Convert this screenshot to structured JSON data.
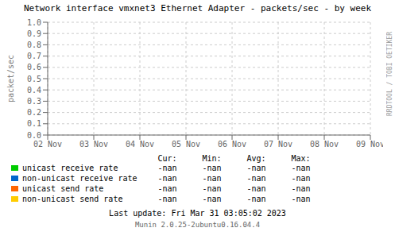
{
  "chart_data": {
    "type": "line",
    "title": "Network interface vmxnet3 Ethernet Adapter - packets/sec - by week",
    "y_label": "packet/sec",
    "categories": [
      "02 Nov",
      "03 Nov",
      "04 Nov",
      "05 Nov",
      "06 Nov",
      "07 Nov",
      "08 Nov",
      "09 Nov"
    ],
    "series": [
      {
        "name": "unicast receive rate",
        "color": "#00cc00",
        "values": [
          null,
          null,
          null,
          null,
          null,
          null,
          null,
          null
        ]
      },
      {
        "name": "non-unicast receive rate",
        "color": "#0066cc",
        "values": [
          null,
          null,
          null,
          null,
          null,
          null,
          null,
          null
        ]
      },
      {
        "name": "unicast send rate",
        "color": "#ff6600",
        "values": [
          null,
          null,
          null,
          null,
          null,
          null,
          null,
          null
        ]
      },
      {
        "name": "non-unicast send rate",
        "color": "#ffcc00",
        "values": [
          null,
          null,
          null,
          null,
          null,
          null,
          null,
          null
        ]
      }
    ],
    "ylim": [
      0.0,
      1.0
    ],
    "yticks": [
      {
        "value": 0.0,
        "label": "0.0"
      },
      0.1,
      0.2,
      0.3,
      0.4,
      0.5,
      0.6,
      0.7,
      0.8,
      0.9,
      {
        "value": 1.0,
        "label": "1.0"
      }
    ],
    "grid": true,
    "table": {
      "columns": [
        "Cur:",
        "Min:",
        "Avg:",
        "Max:"
      ],
      "rows": [
        [
          "-nan",
          "-nan",
          "-nan",
          "-nan"
        ],
        [
          "-nan",
          "-nan",
          "-nan",
          "-nan"
        ],
        [
          "-nan",
          "-nan",
          "-nan",
          "-nan"
        ],
        [
          "-nan",
          "-nan",
          "-nan",
          "-nan"
        ]
      ]
    },
    "annotations": [
      "Last update: Fri Mar 31 03:05:02 2023",
      "Munin 2.0.25-2ubuntu0.16.04.4",
      "RRDTOOL / TOBI OETIKER"
    ]
  }
}
